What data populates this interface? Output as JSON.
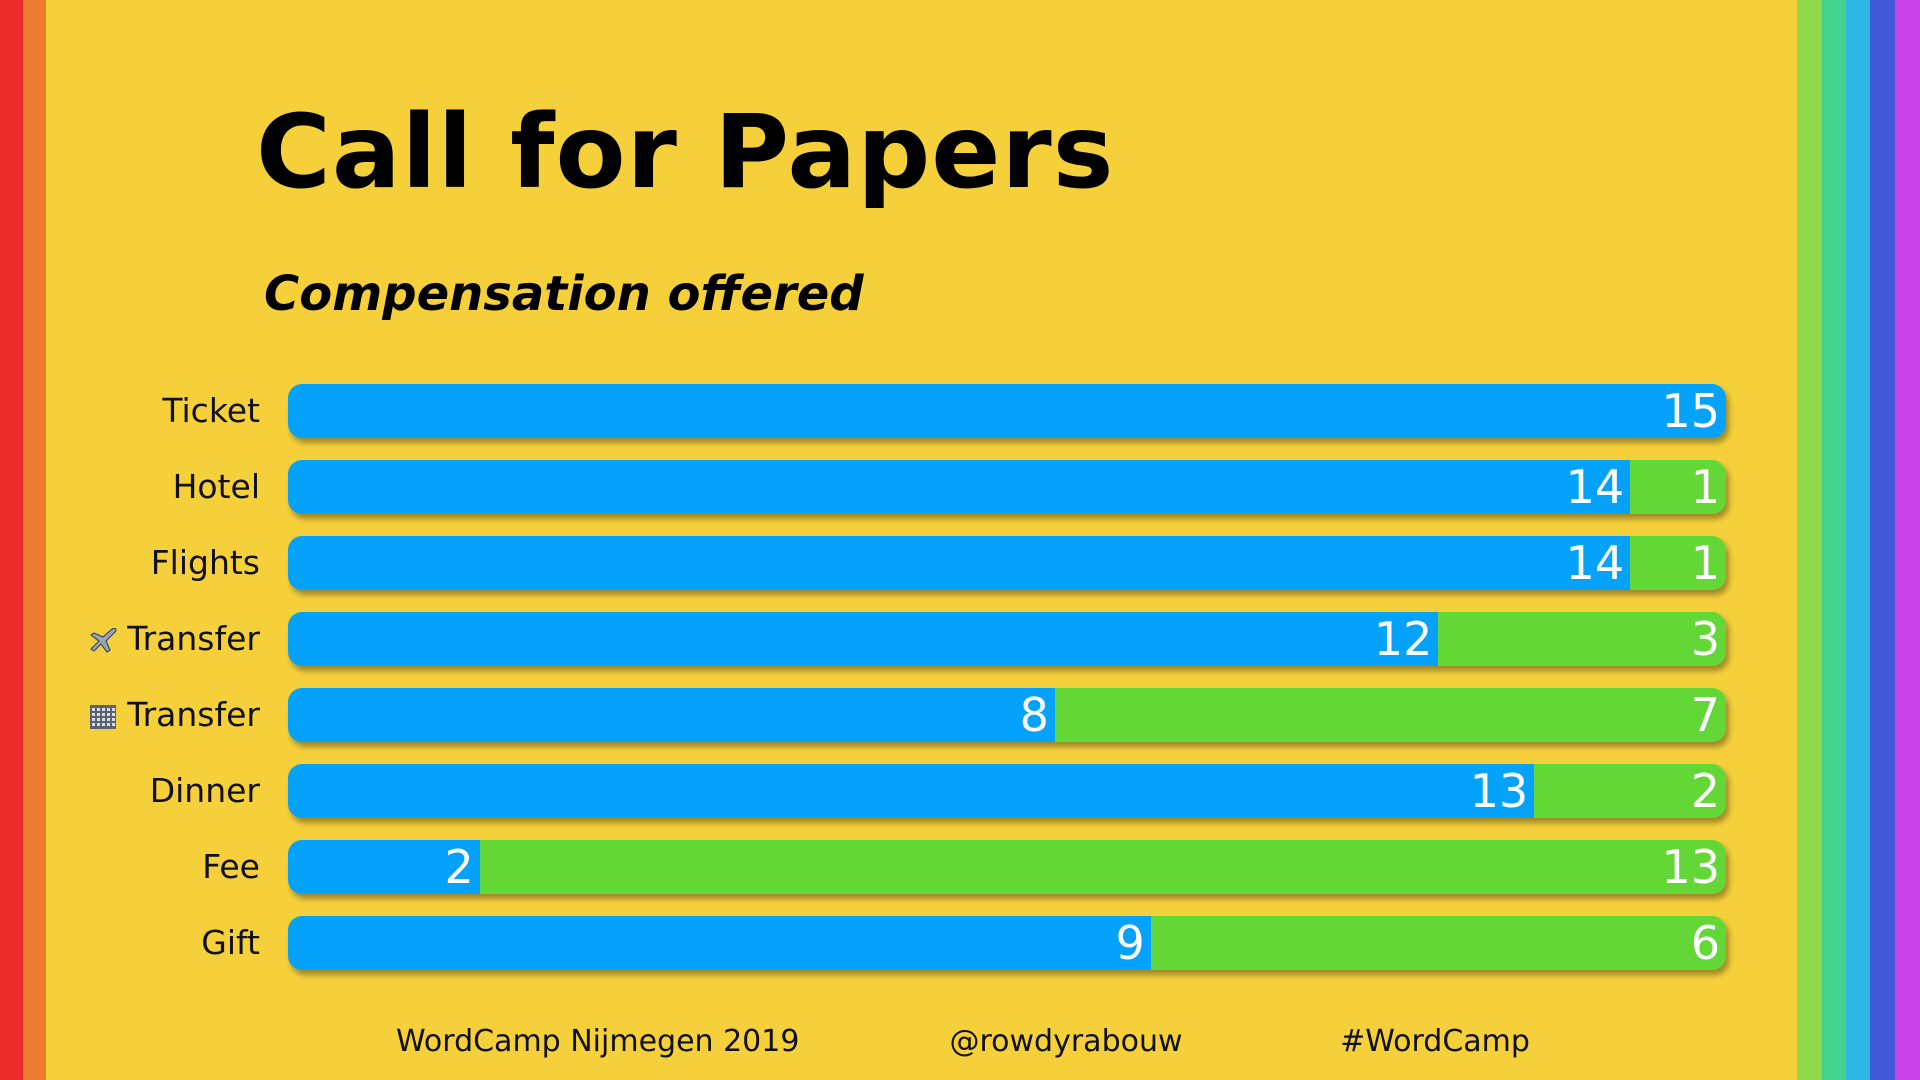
{
  "slide": {
    "title": "Call for Papers",
    "footer": {
      "event": "WordCamp Nijmegen 2019",
      "handle": "@rowdyrabouw",
      "hashtag": "#WordCamp"
    },
    "rainbow_left": [
      "#e82b26",
      "#ef7b31"
    ],
    "rainbow_right": [
      "#8fd94b",
      "#44d08d",
      "#2db6e4",
      "#4159d9",
      "#c844e6"
    ]
  },
  "chart_data": {
    "type": "bar",
    "orientation": "horizontal",
    "stacked": true,
    "title": "Compensation offered",
    "categories": [
      "Ticket",
      "Hotel",
      "Flights",
      "Transfer",
      "Transfer",
      "Dinner",
      "Fee",
      "Gift"
    ],
    "category_icons": [
      "",
      "",
      "",
      "airplane-icon",
      "building-icon",
      "",
      "",
      ""
    ],
    "series": [
      {
        "values": [
          15,
          14,
          14,
          12,
          8,
          13,
          2,
          9
        ],
        "color": "#04a2fb"
      },
      {
        "values": [
          0,
          1,
          1,
          3,
          7,
          2,
          13,
          6
        ],
        "color": "#63d736"
      }
    ],
    "xlim": [
      0,
      15
    ],
    "grid": false,
    "legend": "none",
    "data_labels": true
  }
}
